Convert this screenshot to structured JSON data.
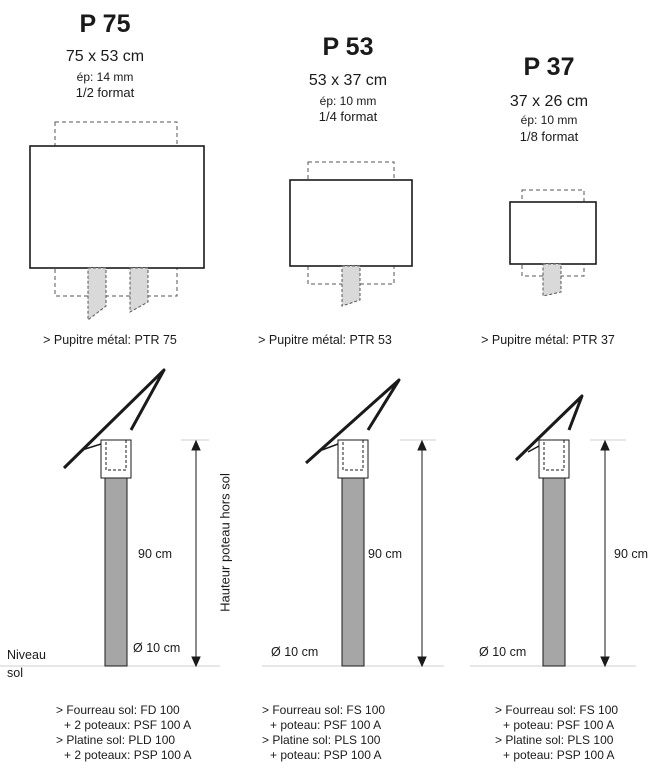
{
  "models": [
    {
      "title": "P 75",
      "size": "75 x 53 cm",
      "thickness": "ép: 14 mm",
      "format": "1/2 format",
      "desk_label": "> Pupitre métal: PTR 75",
      "mount_lines": [
        "> Fourreau sol:  FD 100",
        "+ 2 poteaux: PSF 100 A",
        "> Platine sol:     PLD 100",
        "+ 2 poteaux: PSP 100 A"
      ]
    },
    {
      "title": "P 53",
      "size": "53 x 37 cm",
      "thickness": "ép: 10 mm",
      "format": "1/4 format",
      "desk_label": "> Pupitre métal: PTR 53",
      "mount_lines": [
        "> Fourreau sol: FS 100",
        "+ poteau: PSF 100 A",
        "> Platine sol:    PLS 100",
        "+ poteau: PSP 100 A"
      ]
    },
    {
      "title": "P 37",
      "size": "37 x 26 cm",
      "thickness": "ép: 10 mm",
      "format": "1/8 format",
      "desk_label": "> Pupitre métal: PTR 37",
      "mount_lines": [
        "> Fourreau sol: FS 100",
        "+ poteau: PSF 100 A",
        "> Platine sol:    PLS 100",
        "+ poteau: PSP 100 A"
      ]
    }
  ],
  "height_label": "Hauteur poteau hors sol",
  "height_value": "90 cm",
  "diameter": "Ø 10 cm",
  "ground_label_1": "Niveau",
  "ground_label_2": "sol",
  "colors": {
    "post": "#a6a6a6",
    "foot": "#d9d9d9",
    "line": "#1a1a1a",
    "ground": "#cfcfcf"
  }
}
